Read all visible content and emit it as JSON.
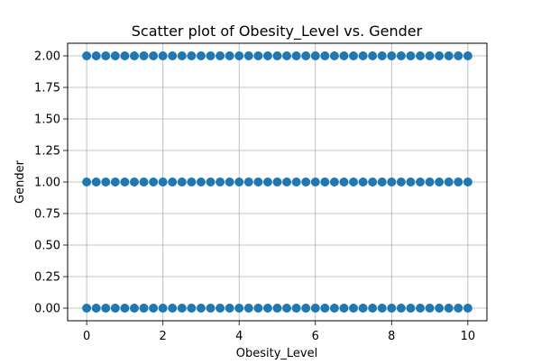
{
  "chart_data": {
    "type": "scatter",
    "title": "Scatter plot of Obesity_Level vs. Gender",
    "xlabel": "Obesity_Level",
    "ylabel": "Gender",
    "xlim": [
      -0.5,
      10.5
    ],
    "ylim": [
      -0.1,
      2.1
    ],
    "xticks": [
      0,
      2,
      4,
      6,
      8,
      10
    ],
    "xtick_labels": [
      "0",
      "2",
      "4",
      "6",
      "8",
      "10"
    ],
    "yticks": [
      0,
      0.25,
      0.5,
      0.75,
      1.0,
      1.25,
      1.5,
      1.75,
      2.0
    ],
    "ytick_labels": [
      "0.00",
      "0.25",
      "0.50",
      "0.75",
      "1.00",
      "1.25",
      "1.50",
      "1.75",
      "2.00"
    ],
    "grid": true,
    "marker_color": "#1f77b4",
    "series": [
      {
        "points": [
          [
            0,
            0
          ],
          [
            0.25,
            0
          ],
          [
            0.5,
            0
          ],
          [
            0.75,
            0
          ],
          [
            1,
            0
          ],
          [
            1.25,
            0
          ],
          [
            1.5,
            0
          ],
          [
            1.75,
            0
          ],
          [
            2,
            0
          ],
          [
            2.25,
            0
          ],
          [
            2.5,
            0
          ],
          [
            2.75,
            0
          ],
          [
            3,
            0
          ],
          [
            3.25,
            0
          ],
          [
            3.5,
            0
          ],
          [
            3.75,
            0
          ],
          [
            4,
            0
          ],
          [
            4.25,
            0
          ],
          [
            4.5,
            0
          ],
          [
            4.75,
            0
          ],
          [
            5,
            0
          ],
          [
            5.25,
            0
          ],
          [
            5.5,
            0
          ],
          [
            5.75,
            0
          ],
          [
            6,
            0
          ],
          [
            6.25,
            0
          ],
          [
            6.5,
            0
          ],
          [
            6.75,
            0
          ],
          [
            7,
            0
          ],
          [
            7.25,
            0
          ],
          [
            7.5,
            0
          ],
          [
            7.75,
            0
          ],
          [
            8,
            0
          ],
          [
            8.25,
            0
          ],
          [
            8.5,
            0
          ],
          [
            8.75,
            0
          ],
          [
            9,
            0
          ],
          [
            9.25,
            0
          ],
          [
            9.5,
            0
          ],
          [
            9.75,
            0
          ],
          [
            10,
            0
          ],
          [
            0,
            1
          ],
          [
            0.25,
            1
          ],
          [
            0.5,
            1
          ],
          [
            0.75,
            1
          ],
          [
            1,
            1
          ],
          [
            1.25,
            1
          ],
          [
            1.5,
            1
          ],
          [
            1.75,
            1
          ],
          [
            2,
            1
          ],
          [
            2.25,
            1
          ],
          [
            2.5,
            1
          ],
          [
            2.75,
            1
          ],
          [
            3,
            1
          ],
          [
            3.25,
            1
          ],
          [
            3.5,
            1
          ],
          [
            3.75,
            1
          ],
          [
            4,
            1
          ],
          [
            4.25,
            1
          ],
          [
            4.5,
            1
          ],
          [
            4.75,
            1
          ],
          [
            5,
            1
          ],
          [
            5.25,
            1
          ],
          [
            5.5,
            1
          ],
          [
            5.75,
            1
          ],
          [
            6,
            1
          ],
          [
            6.25,
            1
          ],
          [
            6.5,
            1
          ],
          [
            6.75,
            1
          ],
          [
            7,
            1
          ],
          [
            7.25,
            1
          ],
          [
            7.5,
            1
          ],
          [
            7.75,
            1
          ],
          [
            8,
            1
          ],
          [
            8.25,
            1
          ],
          [
            8.5,
            1
          ],
          [
            8.75,
            1
          ],
          [
            9,
            1
          ],
          [
            9.25,
            1
          ],
          [
            9.5,
            1
          ],
          [
            9.75,
            1
          ],
          [
            10,
            1
          ],
          [
            0,
            2
          ],
          [
            0.25,
            2
          ],
          [
            0.5,
            2
          ],
          [
            0.75,
            2
          ],
          [
            1,
            2
          ],
          [
            1.25,
            2
          ],
          [
            1.5,
            2
          ],
          [
            1.75,
            2
          ],
          [
            2,
            2
          ],
          [
            2.25,
            2
          ],
          [
            2.5,
            2
          ],
          [
            2.75,
            2
          ],
          [
            3,
            2
          ],
          [
            3.25,
            2
          ],
          [
            3.5,
            2
          ],
          [
            3.75,
            2
          ],
          [
            4,
            2
          ],
          [
            4.25,
            2
          ],
          [
            4.5,
            2
          ],
          [
            4.75,
            2
          ],
          [
            5,
            2
          ],
          [
            5.25,
            2
          ],
          [
            5.5,
            2
          ],
          [
            5.75,
            2
          ],
          [
            6,
            2
          ],
          [
            6.25,
            2
          ],
          [
            6.5,
            2
          ],
          [
            6.75,
            2
          ],
          [
            7,
            2
          ],
          [
            7.25,
            2
          ],
          [
            7.5,
            2
          ],
          [
            7.75,
            2
          ],
          [
            8,
            2
          ],
          [
            8.25,
            2
          ],
          [
            8.5,
            2
          ],
          [
            8.75,
            2
          ],
          [
            9,
            2
          ],
          [
            9.25,
            2
          ],
          [
            9.5,
            2
          ],
          [
            9.75,
            2
          ],
          [
            10,
            2
          ]
        ]
      }
    ]
  }
}
